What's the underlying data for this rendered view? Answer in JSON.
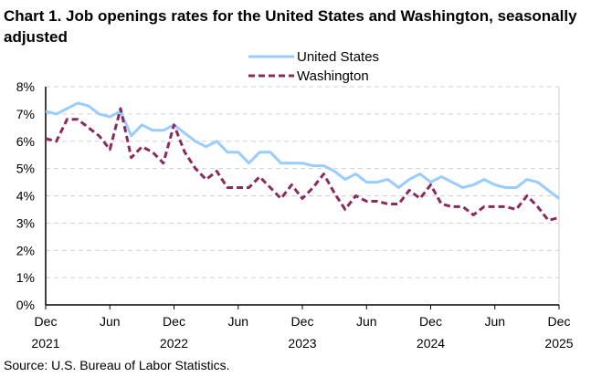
{
  "chart_data": {
    "type": "line",
    "title": "Chart 1. Job openings rates for the United States and Washington, seasonally adjusted",
    "source": "Source: U.S. Bureau of Labor Statistics.",
    "xlabel": "",
    "ylabel": "",
    "ylim": [
      0,
      8
    ],
    "yticks": [
      "0%",
      "1%",
      "2%",
      "3%",
      "4%",
      "5%",
      "6%",
      "7%",
      "8%"
    ],
    "xticks": [
      {
        "month": "Dec",
        "year": "2021",
        "index": 0
      },
      {
        "month": "Jun",
        "year": "",
        "index": 6
      },
      {
        "month": "Dec",
        "year": "2022",
        "index": 12
      },
      {
        "month": "Jun",
        "year": "",
        "index": 18
      },
      {
        "month": "Dec",
        "year": "2023",
        "index": 24
      },
      {
        "month": "Jun",
        "year": "",
        "index": 30
      },
      {
        "month": "Dec",
        "year": "2024",
        "index": 36
      },
      {
        "month": "Jun",
        "year": "",
        "index": 42
      },
      {
        "month": "Dec",
        "year": "2025",
        "index": 48
      }
    ],
    "x_range": [
      "Dec 2021",
      "Dec 2025"
    ],
    "grid": "horizontal dashed",
    "legend_placement": "top-center",
    "series": [
      {
        "name": "United States",
        "color": "#99ccff",
        "style": "solid",
        "values": [
          7.1,
          7.0,
          7.2,
          7.4,
          7.3,
          7.0,
          6.9,
          7.1,
          6.2,
          6.6,
          6.4,
          6.4,
          6.6,
          6.3,
          6.0,
          5.8,
          6.0,
          5.6,
          5.6,
          5.2,
          5.6,
          5.6,
          5.2,
          5.2,
          5.2,
          5.1,
          5.1,
          4.9,
          4.6,
          4.8,
          4.5,
          4.5,
          4.6,
          4.3,
          4.6,
          4.8,
          4.5,
          4.7,
          4.5,
          4.3,
          4.4,
          4.6,
          4.4,
          4.3,
          4.3,
          4.6,
          4.5,
          4.2,
          3.9
        ]
      },
      {
        "name": "Washington",
        "color": "#8b2a5c",
        "style": "dashed",
        "values": [
          6.1,
          6.0,
          6.8,
          6.8,
          6.5,
          6.2,
          5.7,
          7.2,
          5.4,
          5.8,
          5.6,
          5.2,
          6.6,
          5.6,
          5.0,
          4.6,
          4.9,
          4.3,
          4.3,
          4.3,
          4.7,
          4.3,
          3.9,
          4.4,
          3.9,
          4.3,
          4.8,
          4.1,
          3.5,
          4.0,
          3.8,
          3.8,
          3.7,
          3.7,
          4.2,
          3.9,
          4.4,
          3.7,
          3.6,
          3.6,
          3.3,
          3.6,
          3.6,
          3.6,
          3.5,
          4.0,
          3.6,
          3.1,
          3.2
        ]
      }
    ]
  }
}
